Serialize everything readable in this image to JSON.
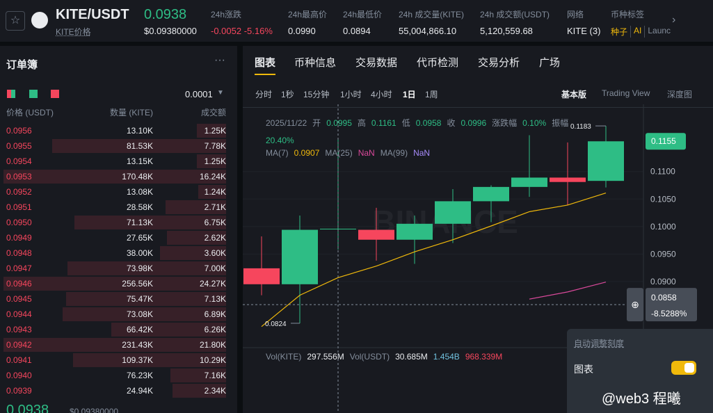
{
  "header": {
    "pair": "KITE/USDT",
    "price": "0.0938",
    "price_caption": "KITE价格",
    "fiat": "$0.09380000",
    "stats": [
      {
        "label": "24h涨跌",
        "value": "-0.0052 -5.16%"
      },
      {
        "label": "24h最高价",
        "value": "0.0990"
      },
      {
        "label": "24h最低价",
        "value": "0.0894"
      },
      {
        "label": "24h 成交量(KITE)",
        "value": "55,004,866.10"
      },
      {
        "label": "24h 成交额(USDT)",
        "value": "5,120,559.68"
      },
      {
        "label": "网络",
        "value": "KITE (3)"
      }
    ],
    "tags_label": "币种标签",
    "tags": [
      "种子",
      "AI",
      "Launc"
    ]
  },
  "orderbook": {
    "title": "订单簿",
    "precision": "0.0001",
    "columns": [
      "价格 (USDT)",
      "数量 (KITE)",
      "成交额"
    ],
    "rows": [
      [
        "0.0956",
        "13.10K",
        "1.25K"
      ],
      [
        "0.0955",
        "81.53K",
        "7.78K"
      ],
      [
        "0.0954",
        "13.15K",
        "1.25K"
      ],
      [
        "0.0953",
        "170.48K",
        "16.24K"
      ],
      [
        "0.0952",
        "13.08K",
        "1.24K"
      ],
      [
        "0.0951",
        "28.58K",
        "2.71K"
      ],
      [
        "0.0950",
        "71.13K",
        "6.75K"
      ],
      [
        "0.0949",
        "27.65K",
        "2.62K"
      ],
      [
        "0.0948",
        "38.00K",
        "3.60K"
      ],
      [
        "0.0947",
        "73.98K",
        "7.00K"
      ],
      [
        "0.0946",
        "256.56K",
        "24.27K"
      ],
      [
        "0.0945",
        "75.47K",
        "7.13K"
      ],
      [
        "0.0944",
        "73.08K",
        "6.89K"
      ],
      [
        "0.0943",
        "66.42K",
        "6.26K"
      ],
      [
        "0.0942",
        "231.43K",
        "21.80K"
      ],
      [
        "0.0941",
        "109.37K",
        "10.29K"
      ],
      [
        "0.0940",
        "76.23K",
        "7.16K"
      ],
      [
        "0.0939",
        "24.94K",
        "2.34K"
      ]
    ],
    "last_price": "0.0938",
    "last_fiat": "$0.09380000"
  },
  "tabs": [
    "图表",
    "币种信息",
    "交易数据",
    "代币检测",
    "交易分析",
    "广场"
  ],
  "intervals": [
    "分时",
    "1秒",
    "15分钟",
    "1小时",
    "4小时",
    "1日",
    "1周"
  ],
  "views": [
    "基本版",
    "Trading View",
    "深度图"
  ],
  "chart_data": {
    "type": "candlestick",
    "categories": [
      null,
      null,
      "2025/11/22",
      null,
      null,
      null,
      null,
      null,
      null,
      null
    ],
    "open": [
      0.0924,
      0.0895,
      0.0995,
      0.0994,
      0.0976,
      0.1005,
      0.1046,
      0.1072,
      0.1089,
      0.1083
    ],
    "high": [
      0.0982,
      0.102,
      0.1161,
      0.1034,
      0.102,
      0.1068,
      0.1075,
      0.1166,
      0.1153,
      0.1183
    ],
    "low": [
      0.0875,
      0.0824,
      0.0958,
      0.0938,
      0.0932,
      0.097,
      0.1008,
      0.1054,
      0.1039,
      0.1071
    ],
    "close": [
      0.0895,
      0.0994,
      0.0996,
      0.0976,
      0.1005,
      0.1046,
      0.1072,
      0.1089,
      0.1081,
      0.1155
    ],
    "up_color": "#2ebd85",
    "down_color": "#f6465d",
    "info": {
      "open": "开",
      "high": "高",
      "low": "低",
      "close": "收",
      "change_label": "涨跌幅",
      "change": "0.10%",
      "amplitude_label": "振幅",
      "amplitude": "20.40%"
    },
    "ma": [
      {
        "name": "MA(7)",
        "color": "#f0b90b",
        "values": [
          0.0818,
          0.0875,
          0.0907,
          0.0928,
          0.0954,
          0.0976,
          0.1001,
          0.1027,
          0.1039,
          0.1061
        ]
      },
      {
        "name": "MA(25)",
        "color": "#d9499a",
        "current_label": "NaN",
        "values": [
          null,
          null,
          null,
          null,
          null,
          null,
          null,
          0.0868,
          0.0881,
          0.0899
        ]
      },
      {
        "name": "MA(99)",
        "color": "#a78bfa",
        "current_label": "NaN",
        "values": [
          null,
          null,
          null,
          null,
          null,
          null,
          null,
          null,
          null,
          null
        ]
      }
    ],
    "ylim": [
      0.0786,
      0.1216
    ],
    "yticks": [
      {
        "value": 0.09,
        "label": "0.0900"
      },
      {
        "value": 0.095,
        "label": "0.0950"
      },
      {
        "value": 0.1,
        "label": "0.1000"
      },
      {
        "value": 0.105,
        "label": "0.1050"
      },
      {
        "value": 0.11,
        "label": "0.1100"
      }
    ],
    "grid": true,
    "crosshair": {
      "price": 0.0858,
      "change": "-8.5288%"
    },
    "watermark": "BINANCE"
  },
  "volume": {
    "labels": [
      "Vol(KITE)",
      "297.556M",
      "Vol(USDT)",
      "30.685M",
      "1.454B",
      "968.339M"
    ]
  },
  "popup": {
    "title": "自动调整刻度",
    "item": "图表"
  },
  "credit": "@web3 程曦"
}
